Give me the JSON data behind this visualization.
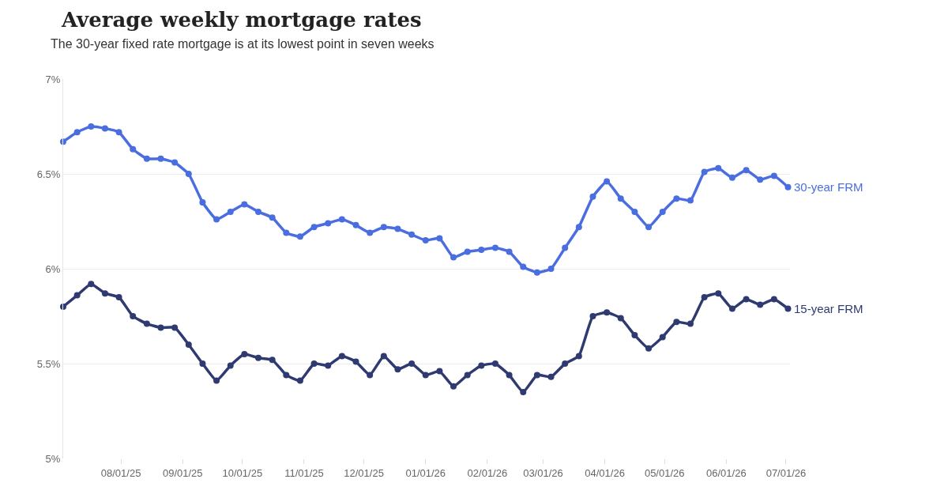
{
  "chart_data": {
    "type": "line",
    "title": "Average weekly mortgage rates",
    "subtitle": "The 30-year fixed rate mortgage is at its lowest point in seven weeks",
    "x": [
      "2025-07-03",
      "2025-07-10",
      "2025-07-17",
      "2025-07-24",
      "2025-07-31",
      "2025-08-07",
      "2025-08-14",
      "2025-08-21",
      "2025-08-28",
      "2025-09-04",
      "2025-09-11",
      "2025-09-18",
      "2025-09-25",
      "2025-10-02",
      "2025-10-09",
      "2025-10-16",
      "2025-10-23",
      "2025-10-30",
      "2025-11-06",
      "2025-11-13",
      "2025-11-20",
      "2025-11-27",
      "2025-12-04",
      "2025-12-11",
      "2025-12-18",
      "2025-12-25",
      "2026-01-01",
      "2026-01-08",
      "2026-01-15",
      "2026-01-22",
      "2026-01-29",
      "2026-02-05",
      "2026-02-12",
      "2026-02-19",
      "2026-02-26",
      "2026-03-05",
      "2026-03-12",
      "2026-03-19",
      "2026-03-26",
      "2026-04-02",
      "2026-04-09",
      "2026-04-16",
      "2026-04-23",
      "2026-04-30",
      "2026-05-07",
      "2026-05-14",
      "2026-05-21",
      "2026-05-28",
      "2026-06-04",
      "2026-06-11",
      "2026-06-18",
      "2026-06-25",
      "2026-07-02"
    ],
    "series": [
      {
        "name": "30-year FRM",
        "color": "#4a6ee0",
        "values": [
          6.67,
          6.72,
          6.75,
          6.74,
          6.72,
          6.63,
          6.58,
          6.58,
          6.56,
          6.5,
          6.35,
          6.26,
          6.3,
          6.34,
          6.3,
          6.27,
          6.19,
          6.17,
          6.22,
          6.24,
          6.26,
          6.23,
          6.19,
          6.22,
          6.21,
          6.18,
          6.15,
          6.16,
          6.06,
          6.09,
          6.1,
          6.11,
          6.09,
          6.01,
          5.98,
          6.0,
          6.11,
          6.22,
          6.38,
          6.46,
          6.37,
          6.3,
          6.22,
          6.3,
          6.37,
          6.36,
          6.51,
          6.53,
          6.48,
          6.52,
          6.47,
          6.49,
          6.43
        ]
      },
      {
        "name": "15-year FRM",
        "color": "#2e3a70",
        "values": [
          5.8,
          5.86,
          5.92,
          5.87,
          5.85,
          5.75,
          5.71,
          5.69,
          5.69,
          5.6,
          5.5,
          5.41,
          5.49,
          5.55,
          5.53,
          5.52,
          5.44,
          5.41,
          5.5,
          5.49,
          5.54,
          5.51,
          5.44,
          5.54,
          5.47,
          5.5,
          5.44,
          5.46,
          5.38,
          5.44,
          5.49,
          5.5,
          5.44,
          5.35,
          5.44,
          5.43,
          5.5,
          5.54,
          5.75,
          5.77,
          5.74,
          5.65,
          5.58,
          5.64,
          5.72,
          5.71,
          5.85,
          5.87,
          5.79,
          5.84,
          5.81,
          5.84,
          5.79
        ]
      }
    ],
    "xlim": [
      "2025-07-03",
      "2026-07-03"
    ],
    "xticks": [
      {
        "value": "2025-08-01",
        "label": "08/01/25"
      },
      {
        "value": "2025-09-01",
        "label": "09/01/25"
      },
      {
        "value": "2025-10-01",
        "label": "10/01/25"
      },
      {
        "value": "2025-11-01",
        "label": "11/01/25"
      },
      {
        "value": "2025-12-01",
        "label": "12/01/25"
      },
      {
        "value": "2026-01-01",
        "label": "01/01/26"
      },
      {
        "value": "2026-02-01",
        "label": "02/01/26"
      },
      {
        "value": "2026-03-01",
        "label": "03/01/26"
      },
      {
        "value": "2026-04-01",
        "label": "04/01/26"
      },
      {
        "value": "2026-05-01",
        "label": "05/01/26"
      },
      {
        "value": "2026-06-01",
        "label": "06/01/26"
      },
      {
        "value": "2026-07-01",
        "label": "07/01/26"
      }
    ],
    "ylim": [
      5,
      7
    ],
    "yticks": [
      {
        "value": 5,
        "label": "5%"
      },
      {
        "value": 5.5,
        "label": "5.5%"
      },
      {
        "value": 6,
        "label": "6%"
      },
      {
        "value": 6.5,
        "label": "6.5%"
      },
      {
        "value": 7,
        "label": "7%"
      }
    ],
    "grid": "y",
    "legend": false,
    "marker": "circle",
    "line_style": "solid"
  }
}
